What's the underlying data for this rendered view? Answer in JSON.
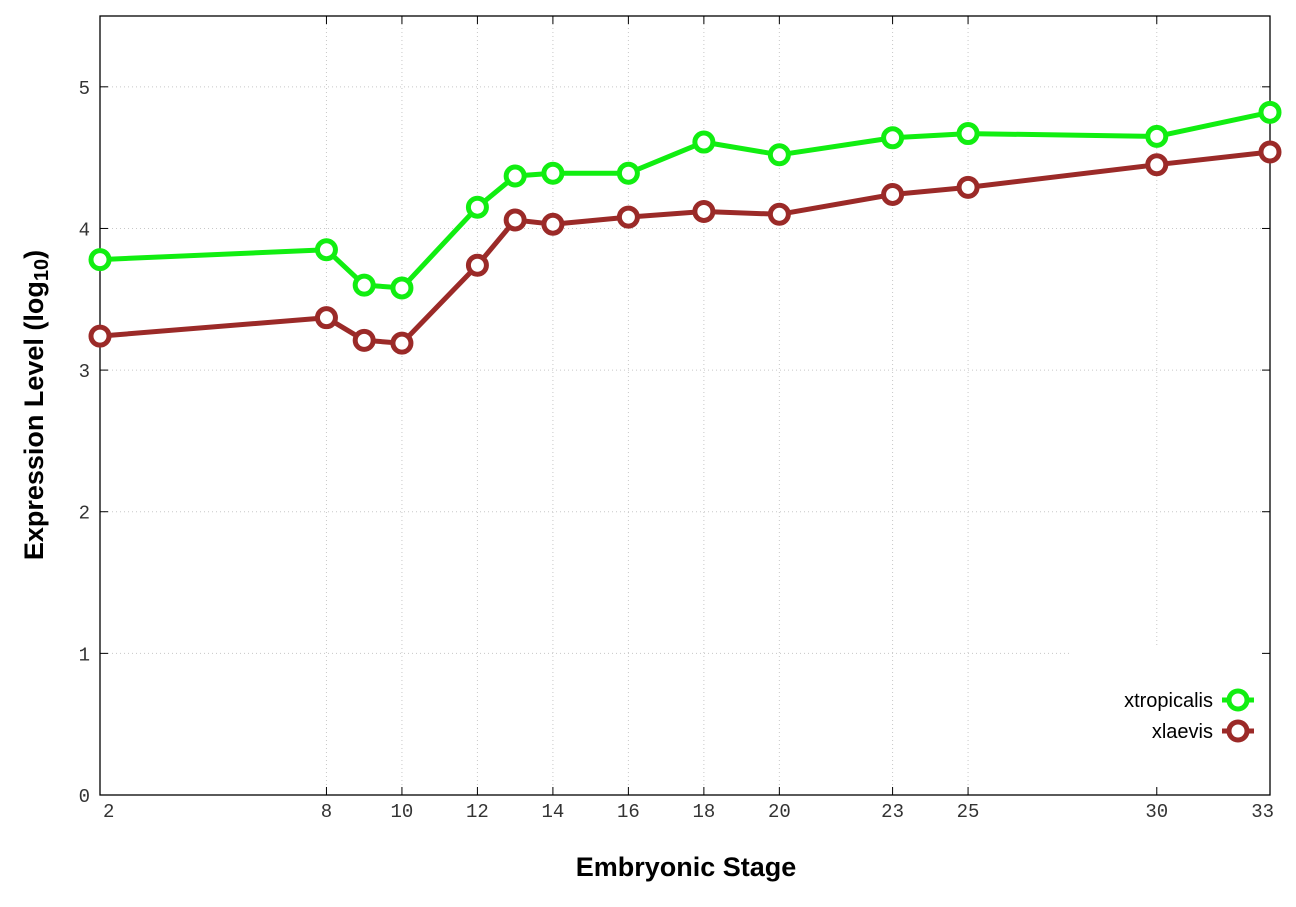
{
  "chart_data": {
    "type": "line",
    "xlabel": "Embryonic Stage",
    "ylabel_main": "Expression Level (log",
    "ylabel_sub": "10",
    "ylabel_close": ")",
    "x": [
      2,
      8,
      9,
      10,
      12,
      13,
      14,
      16,
      18,
      20,
      23,
      25,
      30,
      33
    ],
    "xticks": [
      "2",
      "8",
      "10",
      "12",
      "14",
      "16",
      "18",
      "20",
      "23",
      "25",
      "30",
      "33"
    ],
    "xlim": [
      2,
      33
    ],
    "ylim": [
      0,
      5.5
    ],
    "yticks": [
      "0",
      "1",
      "2",
      "3",
      "4",
      "5"
    ],
    "grid": true,
    "legend_position": "bottom-right",
    "series": [
      {
        "name": "xtropicalis",
        "color": "#11ee11",
        "values": [
          3.78,
          3.85,
          3.6,
          3.58,
          4.15,
          4.37,
          4.39,
          4.39,
          4.61,
          4.52,
          4.64,
          4.67,
          4.65,
          4.82
        ]
      },
      {
        "name": "xlaevis",
        "color": "#9b2a28",
        "values": [
          3.24,
          3.37,
          3.21,
          3.19,
          3.74,
          4.06,
          4.03,
          4.08,
          4.12,
          4.1,
          4.24,
          4.29,
          4.45,
          4.54
        ]
      }
    ]
  }
}
